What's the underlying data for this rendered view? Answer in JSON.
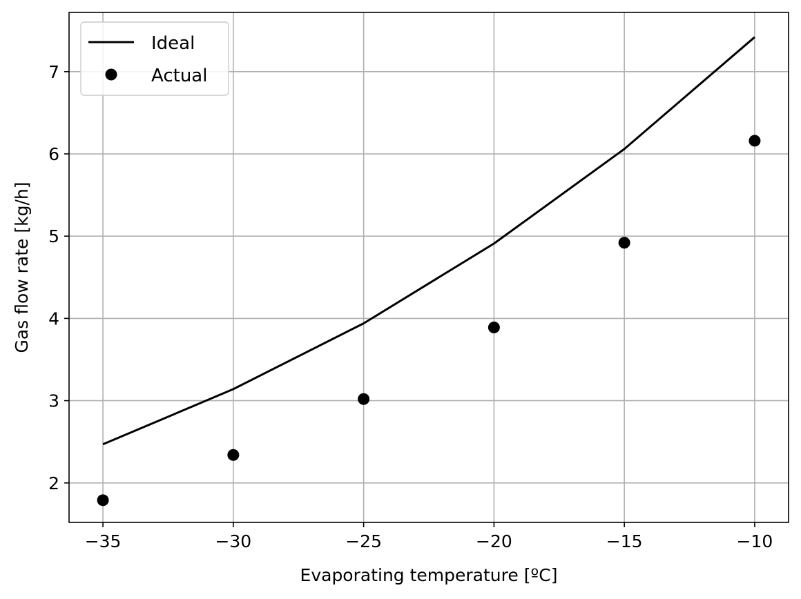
{
  "chart_data": {
    "type": "line",
    "xlabel": "Evaporating temperature [ºC]",
    "ylabel": "Gas flow rate [kg/h]",
    "xlim": [
      -36.3,
      -8.7
    ],
    "ylim": [
      1.52,
      7.72
    ],
    "x_ticks": [
      -35,
      -30,
      -25,
      -20,
      -15,
      -10
    ],
    "x_tick_labels": [
      "−35",
      "−30",
      "−25",
      "−20",
      "−15",
      "−10"
    ],
    "y_ticks": [
      2,
      3,
      4,
      5,
      6,
      7
    ],
    "y_tick_labels": [
      "2",
      "3",
      "4",
      "5",
      "6",
      "7"
    ],
    "grid": true,
    "legend_position": "upper-left",
    "series": [
      {
        "name": "Ideal",
        "style": "line",
        "color": "#000000",
        "x": [
          -35,
          -30,
          -25,
          -20,
          -15,
          -10
        ],
        "y": [
          2.47,
          3.14,
          3.94,
          4.91,
          6.06,
          7.42
        ]
      },
      {
        "name": "Actual",
        "style": "markers",
        "color": "#000000",
        "x": [
          -35,
          -30,
          -25,
          -20,
          -15,
          -10
        ],
        "y": [
          1.79,
          2.34,
          3.02,
          3.89,
          4.92,
          6.16
        ]
      }
    ]
  }
}
